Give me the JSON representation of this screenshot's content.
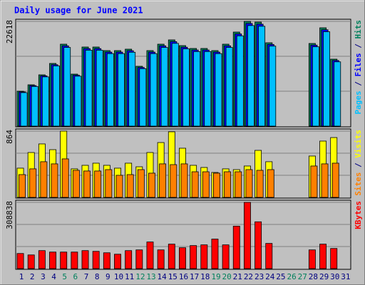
{
  "chart_data": {
    "type": "bar",
    "title": "Daily usage for June 2021",
    "categories": [
      "1",
      "2",
      "3",
      "4",
      "5",
      "6",
      "7",
      "8",
      "9",
      "10",
      "11",
      "12",
      "13",
      "14",
      "15",
      "16",
      "17",
      "18",
      "19",
      "20",
      "21",
      "22",
      "23",
      "24",
      "25",
      "26",
      "27",
      "28",
      "29",
      "30",
      "31"
    ],
    "category_colors": [
      "#000080",
      "#000080",
      "#000080",
      "#000080",
      "#00805c",
      "#00805c",
      "#000080",
      "#000080",
      "#000080",
      "#000080",
      "#000080",
      "#00805c",
      "#00805c",
      "#000080",
      "#000080",
      "#000080",
      "#000080",
      "#000080",
      "#00805c",
      "#00805c",
      "#000080",
      "#000080",
      "#000080",
      "#000080",
      "#000080",
      "#00805c",
      "#00805c",
      "#000080",
      "#000080",
      "#000080",
      "#000080"
    ],
    "panels": [
      {
        "ylim": [
          0,
          22618
        ],
        "yticks": [
          22618
        ],
        "series": [
          {
            "name": "Hits",
            "color": "#00805c",
            "values": [
              7539,
              8924,
              11078,
              13540,
              17694,
              11232,
              17079,
              17079,
              16310,
              16310,
              16617,
              12925,
              16310,
              17694,
              18618,
              17387,
              16771,
              16771,
              16310,
              17694,
              20310,
              22618,
              22464,
              18002,
              null,
              null,
              null,
              17848,
              21233,
              14463,
              null
            ]
          },
          {
            "name": "Files",
            "color": "#0000ff",
            "values": [
              7388,
              8746,
              10856,
              13269,
              17340,
              11007,
              16737,
              16737,
              15984,
              15984,
              16285,
              12667,
              15984,
              17340,
              18246,
              17039,
              16436,
              16436,
              15984,
              17340,
              19904,
              22166,
              22015,
              17642,
              null,
              null,
              null,
              17491,
              20808,
              14174,
              null
            ]
          },
          {
            "name": "Pages",
            "color": "#00c0ff",
            "values": [
              7237,
              8567,
              10635,
              12998,
              16986,
              10783,
              16396,
              16396,
              15658,
              15658,
              15952,
              12408,
              15658,
              16986,
              17873,
              16692,
              16100,
              16100,
              15658,
              16986,
              19498,
              21713,
              21565,
              17282,
              null,
              null,
              null,
              17134,
              20384,
              13884,
              null
            ]
          }
        ]
      },
      {
        "ylim": [
          0,
          864
        ],
        "yticks": [
          864
        ],
        "series": [
          {
            "name": "Visits",
            "color": "#ffff00",
            "values": [
              381,
              585,
              697,
              622,
              864,
              372,
              418,
              446,
              418,
              381,
              446,
              399,
              585,
              715,
              855,
              641,
              418,
              390,
              325,
              372,
              362,
              409,
              613,
              465,
              null,
              null,
              null,
              539,
              734,
              780,
              null
            ]
          },
          {
            "name": "Sites",
            "color": "#ff8000",
            "values": [
              297,
              372,
              465,
              437,
              502,
              353,
              344,
              344,
              362,
              288,
              297,
              362,
              316,
              437,
              427,
              437,
              334,
              334,
              316,
              334,
              334,
              362,
              353,
              362,
              null,
              null,
              null,
              409,
              437,
              446,
              null
            ]
          }
        ]
      },
      {
        "ylim": [
          0,
          308838
        ],
        "yticks": [
          308838
        ],
        "series": [
          {
            "name": "KBytes",
            "color": "#ff0000",
            "values": [
              70496,
              63782,
              83924,
              77209,
              77209,
              77209,
              83924,
              80566,
              73853,
              67139,
              83924,
              87281,
              124207,
              87281,
              114136,
              97351,
              107422,
              110779,
              137634,
              110779,
              198060,
              308838,
              218201,
              117494,
              null,
              null,
              null,
              87281,
              114136,
              93994,
              null
            ]
          }
        ]
      }
    ]
  }
}
